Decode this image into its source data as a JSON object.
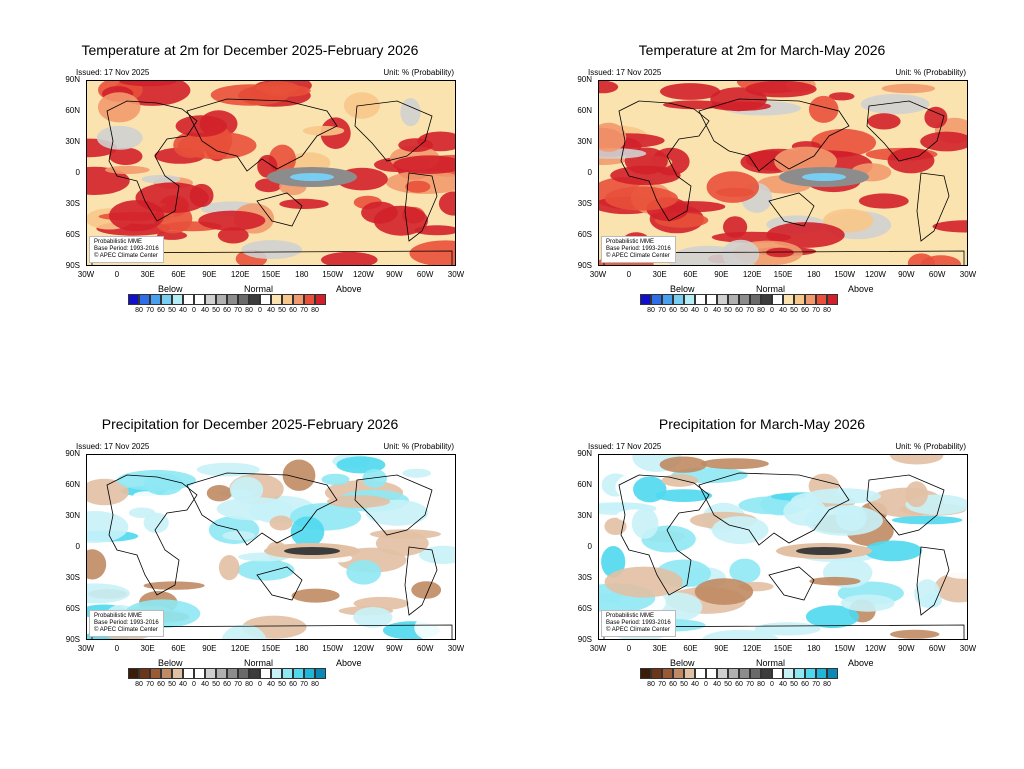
{
  "panels": [
    {
      "title": "Temperature at 2m for December 2025-February 2026",
      "issued": "Issued: 17 Nov 2025",
      "unit": "Unit: % (Probability)",
      "note": [
        "Probabilistic MME",
        "Base Period: 1993-2016",
        "© APEC Climate Center"
      ],
      "kind": "temperature"
    },
    {
      "title": "Temperature at 2m for March-May 2026",
      "issued": "Issued: 17 Nov 2025",
      "unit": "Unit: % (Probability)",
      "note": [
        "Probabilistic MME",
        "Base Period: 1993-2016",
        "© APEC Climate Center"
      ],
      "kind": "temperature"
    },
    {
      "title": "Precipitation for December 2025-February 2026",
      "issued": "Issued: 17 Nov 2025",
      "unit": "Unit: % (Probability)",
      "note": [
        "Probabilistic MME",
        "Base Period: 1993-2016",
        "© APEC Climate Center"
      ],
      "kind": "precipitation"
    },
    {
      "title": "Precipitation for March-May 2026",
      "issued": "Issued: 17 Nov 2025",
      "unit": "Unit: % (Probability)",
      "note": [
        "Probabilistic MME",
        "Base Period: 1993-2016",
        "© APEC Climate Center"
      ],
      "kind": "precipitation"
    }
  ],
  "axes": {
    "lat_labels": [
      "90N",
      "60N",
      "30N",
      "0",
      "30S",
      "60S",
      "90S"
    ],
    "lon_labels": [
      "30W",
      "0",
      "30E",
      "60E",
      "90E",
      "120E",
      "150E",
      "180",
      "150W",
      "120W",
      "90W",
      "60W",
      "30W"
    ]
  },
  "legend": {
    "categories": [
      "Below",
      "Normal",
      "Above"
    ],
    "labels": [
      "80",
      "70",
      "60",
      "50",
      "40",
      "0",
      "40",
      "50",
      "60",
      "70",
      "80",
      "0",
      "40",
      "50",
      "60",
      "70",
      "80"
    ],
    "temperature_colors": {
      "below": [
        "#1010c8",
        "#2e6ee8",
        "#4aa0f0",
        "#78cdf2",
        "#b6ecf6",
        "#ffffff"
      ],
      "normal": [
        "#ffffff",
        "#d0d0d0",
        "#b0b0b0",
        "#8c8c8c",
        "#6a6a6a",
        "#3c3c3c"
      ],
      "above": [
        "#ffffff",
        "#fbe3b0",
        "#f8c78a",
        "#f29a6e",
        "#e8503a",
        "#d2202a"
      ]
    },
    "precipitation_colors": {
      "below": [
        "#3b1c08",
        "#6e3618",
        "#9a5a34",
        "#c08a62",
        "#e2c0a4",
        "#ffffff"
      ],
      "normal": [
        "#ffffff",
        "#d0d0d0",
        "#b0b0b0",
        "#8c8c8c",
        "#6a6a6a",
        "#3c3c3c"
      ],
      "above": [
        "#ffffff",
        "#c8f2f8",
        "#8ee8f4",
        "#4fd8ee",
        "#20b6d8",
        "#0a88b8"
      ]
    }
  }
}
